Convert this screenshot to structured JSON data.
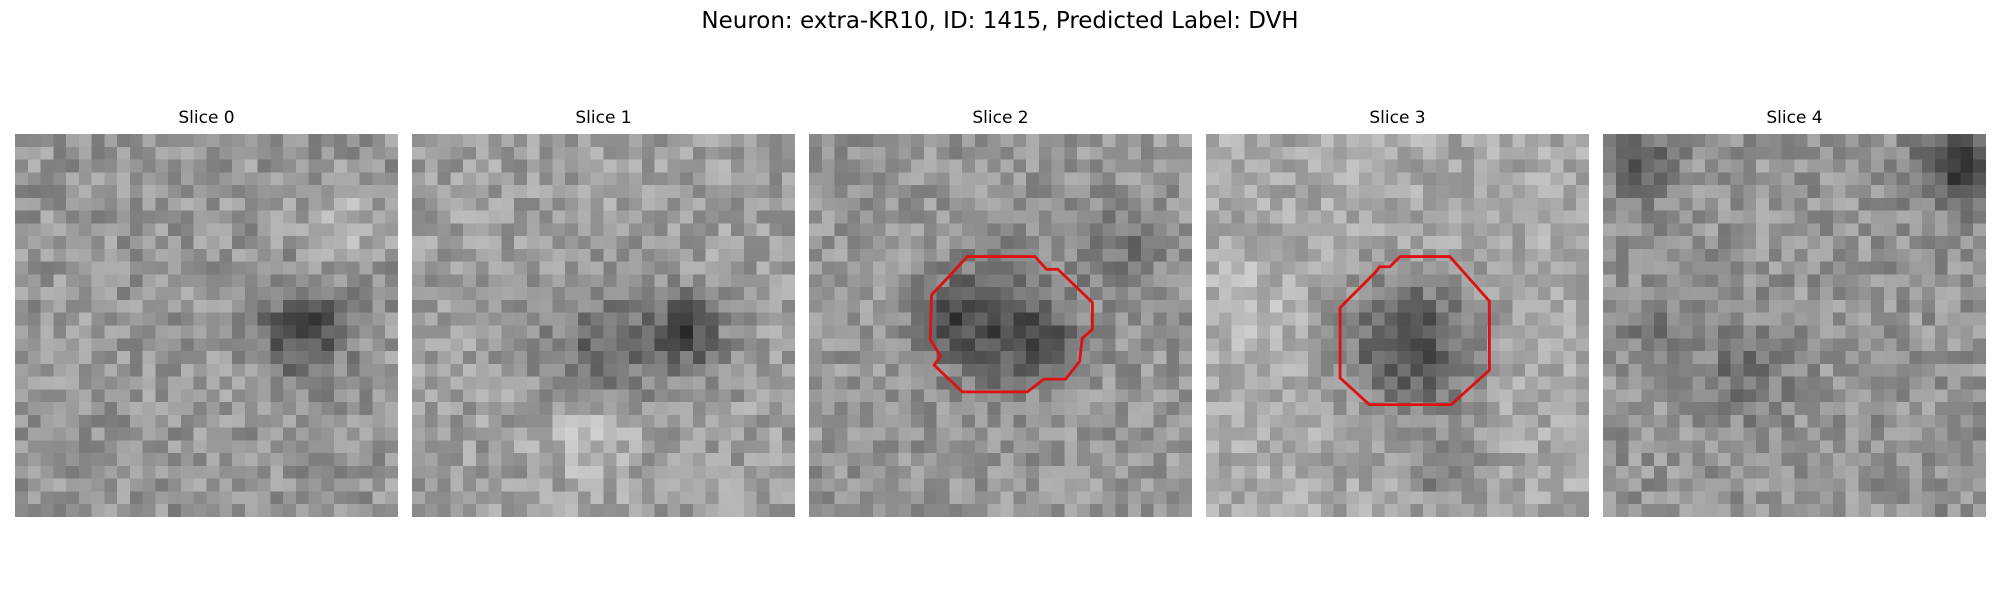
{
  "title": "Neuron: extra-KR10, ID: 1415, Predicted Label: DVH",
  "panels": [
    {
      "label": "Slice 0"
    },
    {
      "label": "Slice 1"
    },
    {
      "label": "Slice 2"
    },
    {
      "label": "Slice 3"
    },
    {
      "label": "Slice 4"
    }
  ],
  "colors": {
    "contour": "#dd1111"
  }
}
